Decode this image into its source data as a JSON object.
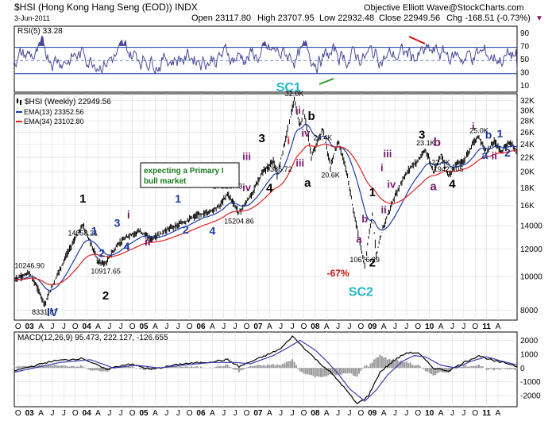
{
  "chart_data": {
    "type": "line",
    "title": "$HSI (Hong Kong Hang Seng (EOD)) INDX",
    "date": "3-Jun-2011",
    "quote": {
      "open": "Open 23117.80",
      "high": "High 23707.95",
      "low": "Low 22932.48",
      "close": "Close 22949.56",
      "change": "Chg -168.51 (-0.73%)",
      "change_marker": "▼"
    },
    "watermark": "Objective Elliott Wave@StockCharts.com",
    "x_ticks": [
      "O",
      "03",
      "A",
      "J",
      "J",
      "O",
      "04",
      "A",
      "J",
      "J",
      "O",
      "05",
      "A",
      "J",
      "J",
      "O",
      "06",
      "A",
      "J",
      "J",
      "O",
      "07",
      "A",
      "J",
      "J",
      "O",
      "08",
      "A",
      "J",
      "J",
      "O",
      "09",
      "A",
      "J",
      "J",
      "O",
      "10",
      "A",
      "J",
      "J",
      "O",
      "11",
      "A"
    ],
    "rsi": {
      "label": "RSI(5) 33.28",
      "levels": [
        "90",
        "70",
        "50",
        "30",
        "10"
      ],
      "overbought": 70,
      "oversold": 30,
      "ylim": [
        0,
        100
      ]
    },
    "price": {
      "legend": [
        "$HSI (Weekly) 22949.56",
        "EMA(13) 23352.56",
        "EMA(34) 23102.80"
      ],
      "y_ticks": [
        "32K",
        "30K",
        "28K",
        "26K",
        "24K",
        "22K",
        "20K",
        "18K",
        "16K",
        "14000",
        "12000",
        "10000",
        "8000"
      ],
      "ylim": [
        7500,
        33500
      ],
      "anchors": [
        {
          "t": 0,
          "v": 9800
        },
        {
          "t": 4,
          "v": 10246.9
        },
        {
          "t": 8,
          "v": 8331.87
        },
        {
          "t": 12,
          "v": 10500
        },
        {
          "t": 18,
          "v": 14058.21
        },
        {
          "t": 22,
          "v": 11000
        },
        {
          "t": 24,
          "v": 10917.65
        },
        {
          "t": 27,
          "v": 12300
        },
        {
          "t": 30,
          "v": 13100
        },
        {
          "t": 33,
          "v": 13500
        },
        {
          "t": 36,
          "v": 12800
        },
        {
          "t": 41,
          "v": 13800
        },
        {
          "t": 45,
          "v": 14400
        },
        {
          "t": 48,
          "v": 15000
        },
        {
          "t": 51,
          "v": 15300
        },
        {
          "t": 54,
          "v": 16000
        },
        {
          "t": 56,
          "v": 17328.43
        },
        {
          "t": 59,
          "v": 15204.86
        },
        {
          "t": 62,
          "v": 17000
        },
        {
          "t": 65,
          "v": 19700
        },
        {
          "t": 68,
          "v": 21500
        },
        {
          "t": 69,
          "v": 19386.72
        },
        {
          "t": 71,
          "v": 24200
        },
        {
          "t": 73.5,
          "v": 31958
        },
        {
          "t": 75,
          "v": 27000
        },
        {
          "t": 76,
          "v": 30000
        },
        {
          "t": 78,
          "v": 22000
        },
        {
          "t": 81,
          "v": 26400
        },
        {
          "t": 83,
          "v": 20600
        },
        {
          "t": 85,
          "v": 24500
        },
        {
          "t": 87,
          "v": 20500
        },
        {
          "t": 89,
          "v": 15500
        },
        {
          "t": 91,
          "v": 12000
        },
        {
          "t": 92,
          "v": 10676.29
        },
        {
          "t": 94,
          "v": 15200
        },
        {
          "t": 95,
          "v": 11500
        },
        {
          "t": 97,
          "v": 14000
        },
        {
          "t": 100,
          "v": 17000
        },
        {
          "t": 102,
          "v": 19000
        },
        {
          "t": 104,
          "v": 20600
        },
        {
          "t": 106,
          "v": 21500
        },
        {
          "t": 108,
          "v": 23100
        },
        {
          "t": 110,
          "v": 20000
        },
        {
          "t": 112,
          "v": 22400
        },
        {
          "t": 114,
          "v": 19423.05
        },
        {
          "t": 116,
          "v": 21000
        },
        {
          "t": 118,
          "v": 21400
        },
        {
          "t": 121,
          "v": 24800
        },
        {
          "t": 122,
          "v": 25000
        },
        {
          "t": 124,
          "v": 22700
        },
        {
          "t": 126,
          "v": 24500
        },
        {
          "t": 128,
          "v": 22800
        },
        {
          "t": 130,
          "v": 24400
        },
        {
          "t": 132,
          "v": 22949.56
        }
      ],
      "price_labels": [
        {
          "text": "10246.90",
          "t": 4,
          "v": 10246.9,
          "pos": "above"
        },
        {
          "text": "8331.87",
          "t": 8,
          "v": 8331.87,
          "pos": "below"
        },
        {
          "text": "14058.21",
          "t": 18,
          "v": 14058.21,
          "pos": "below"
        },
        {
          "text": "10917.65",
          "t": 24,
          "v": 10917.65,
          "pos": "below"
        },
        {
          "text": "17328.43",
          "t": 56,
          "v": 17328.43,
          "pos": "above"
        },
        {
          "text": "15204.86",
          "t": 59,
          "v": 15204.86,
          "pos": "below"
        },
        {
          "text": "19386.72",
          "t": 69,
          "v": 19386.72,
          "pos": "above"
        },
        {
          "text": "32.0K",
          "t": 73.5,
          "v": 31958,
          "pos": "above"
        },
        {
          "text": "26.4K",
          "t": 81,
          "v": 26400,
          "pos": "below"
        },
        {
          "text": "20.6K",
          "t": 83,
          "v": 20600,
          "pos": "below"
        },
        {
          "text": "10676.29",
          "t": 92,
          "v": 10676.29,
          "pos": "above"
        },
        {
          "text": "23.1K",
          "t": 108,
          "v": 23100,
          "pos": "above"
        },
        {
          "text": "22.4K",
          "t": 112,
          "v": 22400,
          "pos": "below"
        },
        {
          "text": "19423.05",
          "t": 114,
          "v": 19423.05,
          "pos": "above"
        },
        {
          "text": "25.0K",
          "t": 122,
          "v": 25000,
          "pos": "above"
        }
      ],
      "wave_labels": [
        {
          "text": "IV",
          "t": 10,
          "v": 7700,
          "color": "#1a3aa8",
          "size": 15
        },
        {
          "text": "1",
          "t": 18,
          "v": 16300,
          "color": "#000000",
          "size": 15
        },
        {
          "text": "2",
          "t": 24,
          "v": 8600,
          "color": "#000000",
          "size": 15
        },
        {
          "text": "1",
          "t": 21,
          "v": 13200,
          "color": "#1a3aa8",
          "size": 14
        },
        {
          "text": "2",
          "t": 23,
          "v": 11400,
          "color": "#1a3aa8",
          "size": 14
        },
        {
          "text": "3",
          "t": 27,
          "v": 13900,
          "color": "#1a3aa8",
          "size": 14
        },
        {
          "text": "4",
          "t": 29.5,
          "v": 11900,
          "color": "#1a3aa8",
          "size": 14
        },
        {
          "text": "i",
          "t": 30,
          "v": 14700,
          "color": "#7a1a6e",
          "size": 14
        },
        {
          "text": "ii",
          "t": 35,
          "v": 12300,
          "color": "#7a1a6e",
          "size": 14
        },
        {
          "text": "1",
          "t": 43,
          "v": 16300,
          "color": "#1a3aa8",
          "size": 14
        },
        {
          "text": "2",
          "t": 45,
          "v": 13300,
          "color": "#1a3aa8",
          "size": 14
        },
        {
          "text": "3",
          "t": 51,
          "v": 18700,
          "color": "#1a3aa8",
          "size": 14
        },
        {
          "text": "4",
          "t": 52,
          "v": 13200,
          "color": "#1a3aa8",
          "size": 14
        },
        {
          "text": "iii",
          "t": 61,
          "v": 21600,
          "color": "#7a1a6e",
          "size": 13
        },
        {
          "text": "iv",
          "t": 61,
          "v": 17600,
          "color": "#7a1a6e",
          "size": 13
        },
        {
          "text": "3",
          "t": 65,
          "v": 24300,
          "color": "#000000",
          "size": 15
        },
        {
          "text": "4",
          "t": 67,
          "v": 17500,
          "color": "#000000",
          "size": 15
        },
        {
          "text": "SC1",
          "t": 72,
          "v": 34000,
          "color": "#20b8c8",
          "size": 16
        },
        {
          "text": "ii",
          "t": 74.5,
          "v": 29300,
          "color": "#7a1a6e",
          "size": 13
        },
        {
          "text": "i",
          "t": 72,
          "v": 24000,
          "color": "#cc1111",
          "size": 13
        },
        {
          "text": "b",
          "t": 78,
          "v": 28200,
          "color": "#000000",
          "size": 15
        },
        {
          "text": "iv",
          "t": 76.5,
          "v": 25200,
          "color": "#7a1a6e",
          "size": 13
        },
        {
          "text": "iii",
          "t": 75,
          "v": 20700,
          "color": "#7a1a6e",
          "size": 13
        },
        {
          "text": "a",
          "t": 77,
          "v": 18100,
          "color": "#000000",
          "size": 15
        },
        {
          "text": "-67%",
          "t": 85,
          "v": 10000,
          "color": "#cc1111",
          "size": 12
        },
        {
          "text": "SC2",
          "t": 91,
          "v": 8800,
          "color": "#20b8c8",
          "size": 16
        },
        {
          "text": "1",
          "t": 94,
          "v": 17000,
          "color": "#000000",
          "size": 15
        },
        {
          "text": "2",
          "t": 94,
          "v": 10700,
          "color": "#000000",
          "size": 15
        },
        {
          "text": "a",
          "t": 90.5,
          "v": 12500,
          "color": "#7a1a6e",
          "size": 13
        },
        {
          "text": "b",
          "t": 92,
          "v": 14300,
          "color": "#7a1a6e",
          "size": 13
        },
        {
          "text": "i",
          "t": 96.5,
          "v": 20100,
          "color": "#7a1a6e",
          "size": 13
        },
        {
          "text": "ii",
          "t": 97,
          "v": 15200,
          "color": "#7a1a6e",
          "size": 13
        },
        {
          "text": "iii",
          "t": 98,
          "v": 22000,
          "color": "#7a1a6e",
          "size": 13
        },
        {
          "text": "iv",
          "t": 99,
          "v": 18000,
          "color": "#7a1a6e",
          "size": 13
        },
        {
          "text": "3",
          "t": 107,
          "v": 24900,
          "color": "#000000",
          "size": 15
        },
        {
          "text": "b",
          "t": 111,
          "v": 23700,
          "color": "#7a1a6e",
          "size": 15
        },
        {
          "text": "a",
          "t": 110,
          "v": 17700,
          "color": "#7a1a6e",
          "size": 15
        },
        {
          "text": "4",
          "t": 115,
          "v": 18000,
          "color": "#000000",
          "size": 15
        },
        {
          "text": "i",
          "t": 120.5,
          "v": 26400,
          "color": "#7a1a6e",
          "size": 13
        },
        {
          "text": "b",
          "t": 124.5,
          "v": 24900,
          "color": "#1a3aa8",
          "size": 14
        },
        {
          "text": "1",
          "t": 127.5,
          "v": 25100,
          "color": "#1a3aa8",
          "size": 14
        },
        {
          "text": "a",
          "t": 123.5,
          "v": 21800,
          "color": "#1a3aa8",
          "size": 14
        },
        {
          "text": "ii",
          "t": 126,
          "v": 21700,
          "color": "#7a1a6e",
          "size": 13
        },
        {
          "text": "2",
          "t": 129.5,
          "v": 22100,
          "color": "#1a3aa8",
          "size": 14
        }
      ],
      "annotation": [
        "expecting a Primary I",
        "bull market"
      ]
    },
    "macd": {
      "label": "MACD(12,26,9) 95.473, 222.127, -126.655",
      "y_ticks": [
        "2000",
        "1000",
        "0",
        "-1000",
        "-2000"
      ],
      "ylim": [
        -2800,
        2600
      ],
      "macd_anchors": [
        {
          "t": 0,
          "v": -200
        },
        {
          "t": 10,
          "v": 500
        },
        {
          "t": 18,
          "v": 700
        },
        {
          "t": 24,
          "v": -100
        },
        {
          "t": 30,
          "v": 300
        },
        {
          "t": 36,
          "v": -100
        },
        {
          "t": 44,
          "v": 300
        },
        {
          "t": 50,
          "v": 400
        },
        {
          "t": 56,
          "v": 600
        },
        {
          "t": 59,
          "v": 100
        },
        {
          "t": 66,
          "v": 900
        },
        {
          "t": 70,
          "v": 1400
        },
        {
          "t": 73,
          "v": 2300
        },
        {
          "t": 77,
          "v": 1200
        },
        {
          "t": 80,
          "v": 400
        },
        {
          "t": 83,
          "v": -300
        },
        {
          "t": 86,
          "v": -1200
        },
        {
          "t": 90,
          "v": -2600
        },
        {
          "t": 93,
          "v": -2000
        },
        {
          "t": 96,
          "v": -300
        },
        {
          "t": 100,
          "v": 600
        },
        {
          "t": 103,
          "v": 1100
        },
        {
          "t": 106,
          "v": 1100
        },
        {
          "t": 110,
          "v": 0
        },
        {
          "t": 114,
          "v": -200
        },
        {
          "t": 118,
          "v": 400
        },
        {
          "t": 122,
          "v": 900
        },
        {
          "t": 126,
          "v": 500
        },
        {
          "t": 130,
          "v": 300
        },
        {
          "t": 132,
          "v": 95.473
        }
      ],
      "signal_anchors": [
        {
          "t": 0,
          "v": -300
        },
        {
          "t": 12,
          "v": 400
        },
        {
          "t": 20,
          "v": 600
        },
        {
          "t": 26,
          "v": 0
        },
        {
          "t": 32,
          "v": 200
        },
        {
          "t": 38,
          "v": 0
        },
        {
          "t": 46,
          "v": 250
        },
        {
          "t": 52,
          "v": 400
        },
        {
          "t": 58,
          "v": 400
        },
        {
          "t": 62,
          "v": 300
        },
        {
          "t": 68,
          "v": 900
        },
        {
          "t": 72,
          "v": 1500
        },
        {
          "t": 75,
          "v": 2000
        },
        {
          "t": 79,
          "v": 1300
        },
        {
          "t": 82,
          "v": 500
        },
        {
          "t": 85,
          "v": -400
        },
        {
          "t": 88,
          "v": -1500
        },
        {
          "t": 92,
          "v": -2400
        },
        {
          "t": 95,
          "v": -1600
        },
        {
          "t": 98,
          "v": -500
        },
        {
          "t": 102,
          "v": 500
        },
        {
          "t": 105,
          "v": 900
        },
        {
          "t": 108,
          "v": 800
        },
        {
          "t": 112,
          "v": 200
        },
        {
          "t": 116,
          "v": 0
        },
        {
          "t": 120,
          "v": 500
        },
        {
          "t": 124,
          "v": 800
        },
        {
          "t": 128,
          "v": 500
        },
        {
          "t": 132,
          "v": 222.127
        }
      ]
    }
  }
}
